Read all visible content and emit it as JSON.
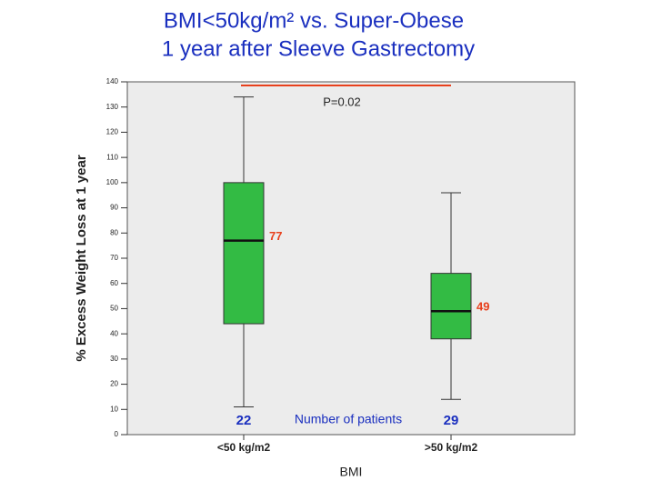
{
  "chart_data": {
    "type": "box",
    "title": [
      "BMI<50kg/m² vs. Super-Obese",
      "1 year after Sleeve Gastrectomy"
    ],
    "x_label": "BMI",
    "y_label": "% Excess Weight Loss at 1 year",
    "categories": [
      "<50 kg/m2",
      ">50 kg/m2"
    ],
    "boxes": [
      {
        "min": 11,
        "q1": 44,
        "median": 77,
        "q3": 100,
        "max": 134,
        "n": 22
      },
      {
        "min": 14,
        "q1": 38,
        "median": 49,
        "q3": 64,
        "max": 96,
        "n": 29
      }
    ],
    "n_label": "Number of patients",
    "annotation": "P=0.02",
    "color": "#33bb44",
    "median_label_color": "#e8401c",
    "n_color": "#1a2fbf",
    "ylim": [
      0,
      140
    ],
    "yticks": [
      0,
      10,
      20,
      30,
      40,
      50,
      60,
      70,
      80,
      90,
      100,
      110,
      120,
      130,
      140
    ]
  }
}
